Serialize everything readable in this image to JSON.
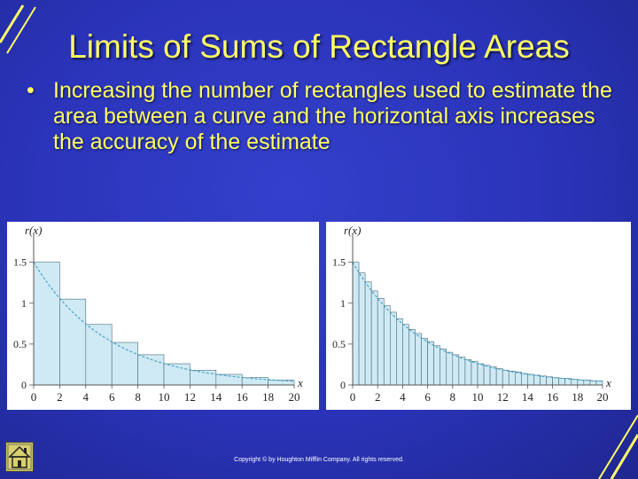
{
  "slide": {
    "title": "Limits of Sums of Rectangle Areas",
    "bullet_marker": "•",
    "bullet": "Increasing the number of rectangles used to estimate the area between a curve and the horizontal axis increases the accuracy of the estimate",
    "copyright": "Copyright © by Houghton Mifflin Company. All rights reserved.",
    "colors": {
      "background": "#2a33b8",
      "text": "#ffff66",
      "rect_fill": "#cfeaf4",
      "curve": "#4aa3c8"
    },
    "home_icon": "home-icon"
  },
  "chart_data": [
    {
      "type": "bar",
      "ylabel": "r(x)",
      "xlabel": "x",
      "x_ticks": [
        "0",
        "2",
        "4",
        "6",
        "8",
        "10",
        "12",
        "14",
        "16",
        "18",
        "20"
      ],
      "y_ticks": [
        "0",
        "0.5",
        "1",
        "1.5"
      ],
      "xlim": [
        0,
        20
      ],
      "ylim": [
        0,
        1.8
      ],
      "bar_width": 2,
      "bars_x": [
        0,
        2,
        4,
        6,
        8,
        10,
        12,
        14,
        16,
        18
      ],
      "bars_height": [
        1.5,
        1.05,
        0.74,
        0.52,
        0.37,
        0.26,
        0.18,
        0.13,
        0.09,
        0.06
      ],
      "curve": "1.5 * 0.84^x"
    },
    {
      "type": "bar",
      "ylabel": "r(x)",
      "xlabel": "x",
      "x_ticks": [
        "0",
        "2",
        "4",
        "6",
        "8",
        "10",
        "12",
        "14",
        "16",
        "18",
        "20"
      ],
      "y_ticks": [
        "0",
        "0.5",
        "1",
        "1.5"
      ],
      "xlim": [
        0,
        20
      ],
      "ylim": [
        0,
        1.8
      ],
      "bar_width": 0.5,
      "bars_x": [
        0,
        0.5,
        1,
        1.5,
        2,
        2.5,
        3,
        3.5,
        4,
        4.5,
        5,
        5.5,
        6,
        6.5,
        7,
        7.5,
        8,
        8.5,
        9,
        9.5,
        10,
        10.5,
        11,
        11.5,
        12,
        12.5,
        13,
        13.5,
        14,
        14.5,
        15,
        15.5,
        16,
        16.5,
        17,
        17.5,
        18,
        18.5,
        19,
        19.5
      ],
      "bars_height": [
        1.5,
        1.37,
        1.26,
        1.15,
        1.06,
        0.97,
        0.89,
        0.81,
        0.74,
        0.68,
        0.63,
        0.57,
        0.53,
        0.48,
        0.44,
        0.4,
        0.37,
        0.34,
        0.31,
        0.29,
        0.26,
        0.24,
        0.22,
        0.2,
        0.18,
        0.17,
        0.16,
        0.14,
        0.13,
        0.12,
        0.11,
        0.1,
        0.09,
        0.08,
        0.08,
        0.07,
        0.06,
        0.06,
        0.05,
        0.05
      ],
      "curve": "1.5 * 0.84^x"
    }
  ]
}
